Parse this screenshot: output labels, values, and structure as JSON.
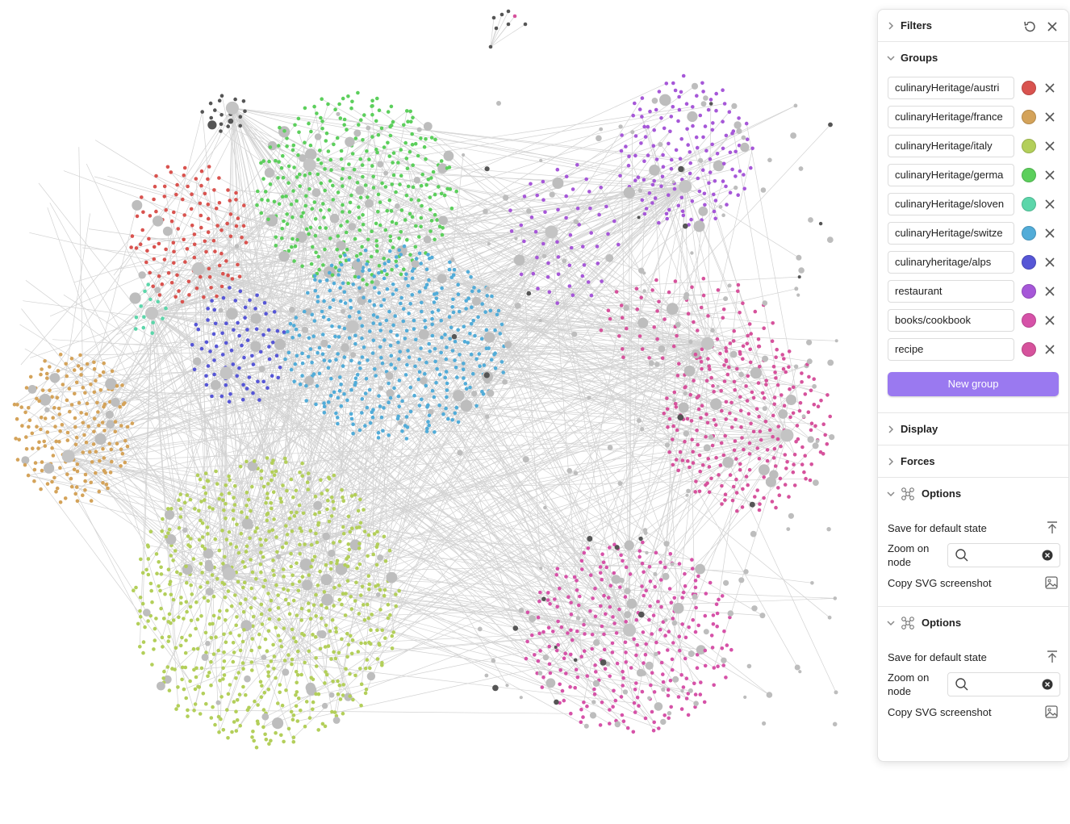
{
  "panel": {
    "filters": "Filters",
    "groups_title": "Groups",
    "groups": [
      {
        "query": "culinaryHeritage/austri",
        "color": "#d9534f"
      },
      {
        "query": "culinaryHeritage/france",
        "color": "#d4a35a"
      },
      {
        "query": "culinaryHeritage/italy",
        "color": "#b3cf5a"
      },
      {
        "query": "culinaryHeritage/germa",
        "color": "#5ccf5c"
      },
      {
        "query": "culinaryHeritage/sloven",
        "color": "#5cd6aa"
      },
      {
        "query": "culinaryHeritage/switze",
        "color": "#52acd8"
      },
      {
        "query": "culinaryheritage/alps",
        "color": "#5656d6"
      },
      {
        "query": "restaurant",
        "color": "#a657d8"
      },
      {
        "query": "books/cookbook",
        "color": "#d652a8"
      },
      {
        "query": "recipe",
        "color": "#d6529c"
      }
    ],
    "new_group": "New group",
    "display": "Display",
    "forces": "Forces",
    "options": [
      {
        "title": "Options",
        "save": "Save for default state",
        "zoom": "Zoom on node",
        "copy": "Copy SVG screenshot"
      },
      {
        "title": "Options",
        "save": "Save for default state",
        "zoom": "Zoom on node",
        "copy": "Copy SVG screenshot"
      }
    ]
  }
}
